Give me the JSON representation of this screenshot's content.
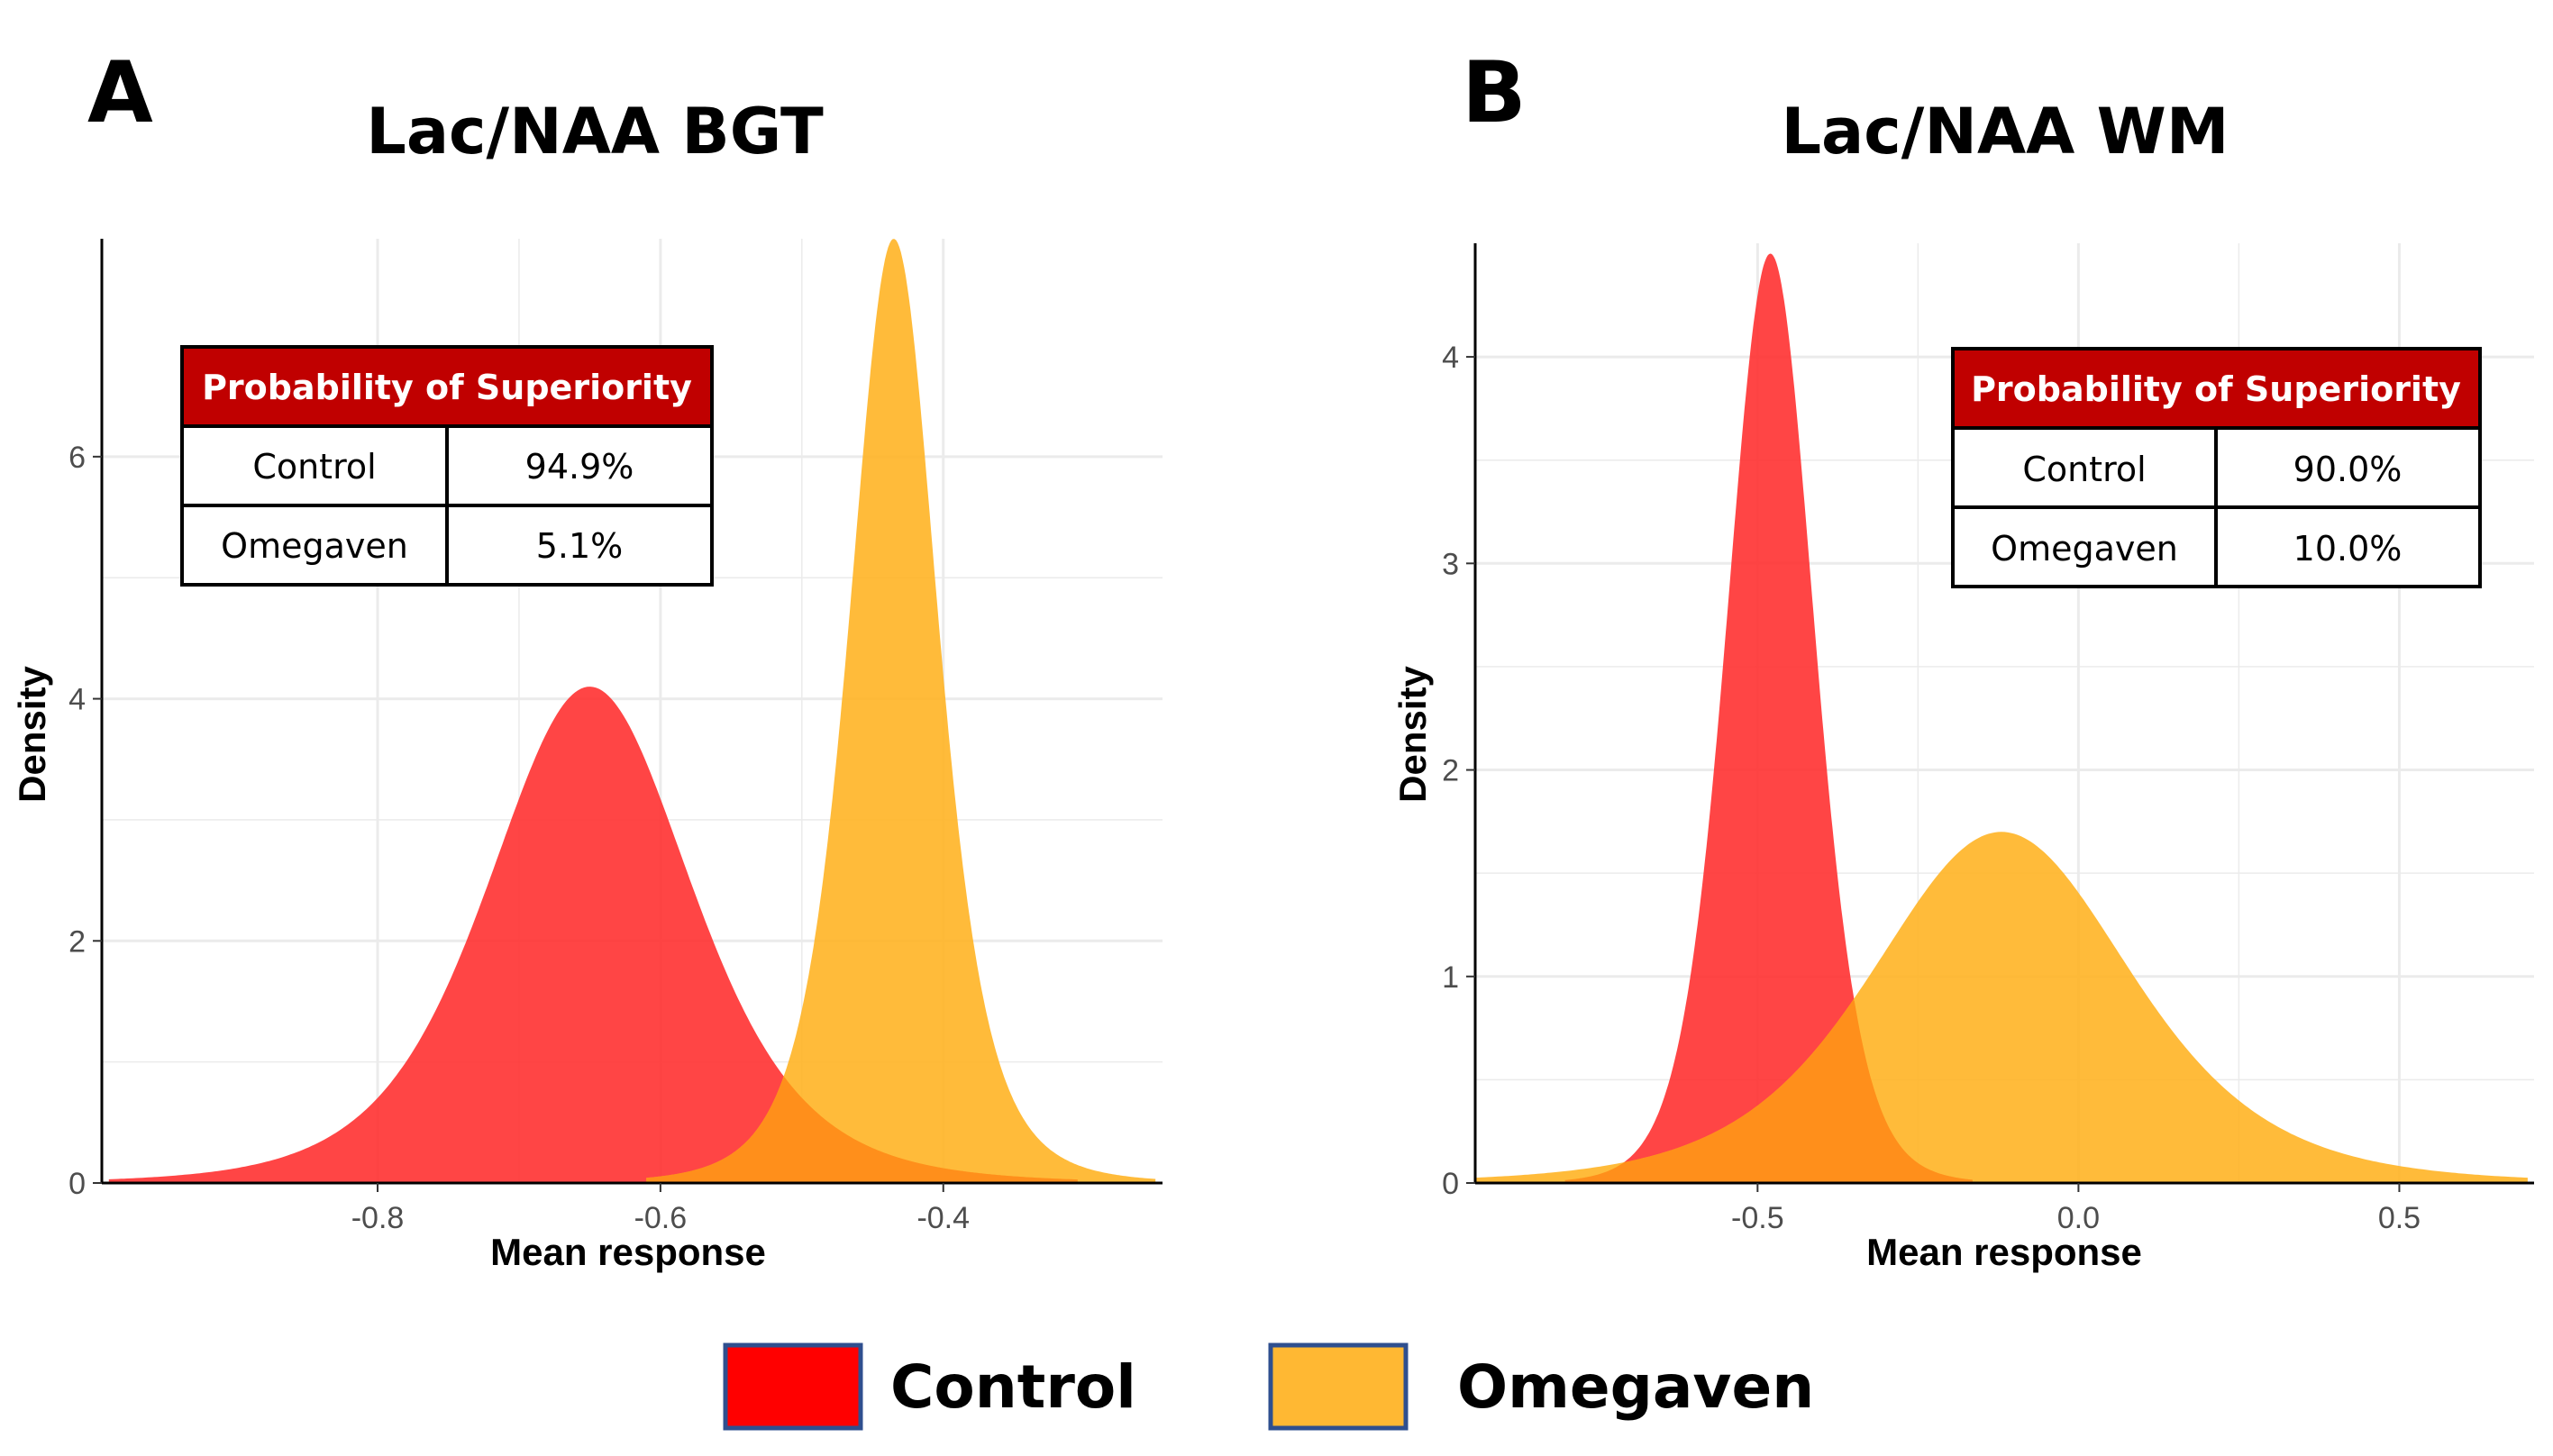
{
  "colors": {
    "control": "#ff2b2b",
    "omegaven": "#ffb21f",
    "overlap": "#ff8c1a",
    "table_header": "#c00000",
    "grid": "#ebebeb"
  },
  "chart_data": [
    {
      "type": "area",
      "panel": "A",
      "title": "Lac/NAA BGT",
      "xlabel": "Mean response",
      "ylabel": "Density",
      "xlim": [
        -0.995,
        -0.245
      ],
      "ylim": [
        0,
        7.8
      ],
      "x_ticks": [
        -0.8,
        -0.6,
        -0.4
      ],
      "x_tick_labels": [
        "-0.8",
        "-0.6",
        "-0.4"
      ],
      "y_ticks": [
        0,
        2,
        4,
        6
      ],
      "y_tick_labels": [
        "0",
        "2",
        "4",
        "6"
      ],
      "grid": true,
      "series": [
        {
          "name": "Control",
          "peak_x": -0.65,
          "peak_density": 4.1,
          "range": [
            -0.99,
            -0.305
          ],
          "sd": 0.075,
          "shape": "t5"
        },
        {
          "name": "Omegaven",
          "peak_x": -0.435,
          "peak_density": 7.8,
          "range": [
            -0.61,
            -0.25
          ],
          "sd": 0.033,
          "shape": "t4"
        }
      ],
      "table": {
        "header": "Probability of Superiority",
        "rows": [
          {
            "label": "Control",
            "value": "94.9%"
          },
          {
            "label": "Omegaven",
            "value": "5.1%"
          }
        ]
      }
    },
    {
      "type": "area",
      "panel": "B",
      "title": "Lac/NAA WM",
      "xlabel": "Mean response",
      "ylabel": "Density",
      "xlim": [
        -0.94,
        0.71
      ],
      "ylim": [
        0,
        4.55
      ],
      "x_ticks": [
        -0.5,
        0.0,
        0.5
      ],
      "x_tick_labels": [
        "-0.5",
        "0.0",
        "0.5"
      ],
      "y_ticks": [
        0,
        1,
        2,
        3,
        4
      ],
      "y_tick_labels": [
        "0",
        "1",
        "2",
        "3",
        "4"
      ],
      "grid": true,
      "series": [
        {
          "name": "Control",
          "peak_x": -0.48,
          "peak_density": 4.5,
          "range": [
            -0.8,
            -0.165
          ],
          "sd": 0.07,
          "shape": "t8"
        },
        {
          "name": "Omegaven",
          "peak_x": -0.12,
          "peak_density": 1.7,
          "range": [
            -0.94,
            0.7
          ],
          "sd": 0.21,
          "shape": "t5"
        }
      ],
      "table": {
        "header": "Probability of Superiority",
        "rows": [
          {
            "label": "Control",
            "value": "90.0%"
          },
          {
            "label": "Omegaven",
            "value": "10.0%"
          }
        ]
      }
    }
  ],
  "legend": {
    "placement": "bottom",
    "items": [
      {
        "name": "Control",
        "color": "#ff0000"
      },
      {
        "name": "Omegaven",
        "color": "#ffb833"
      }
    ]
  }
}
